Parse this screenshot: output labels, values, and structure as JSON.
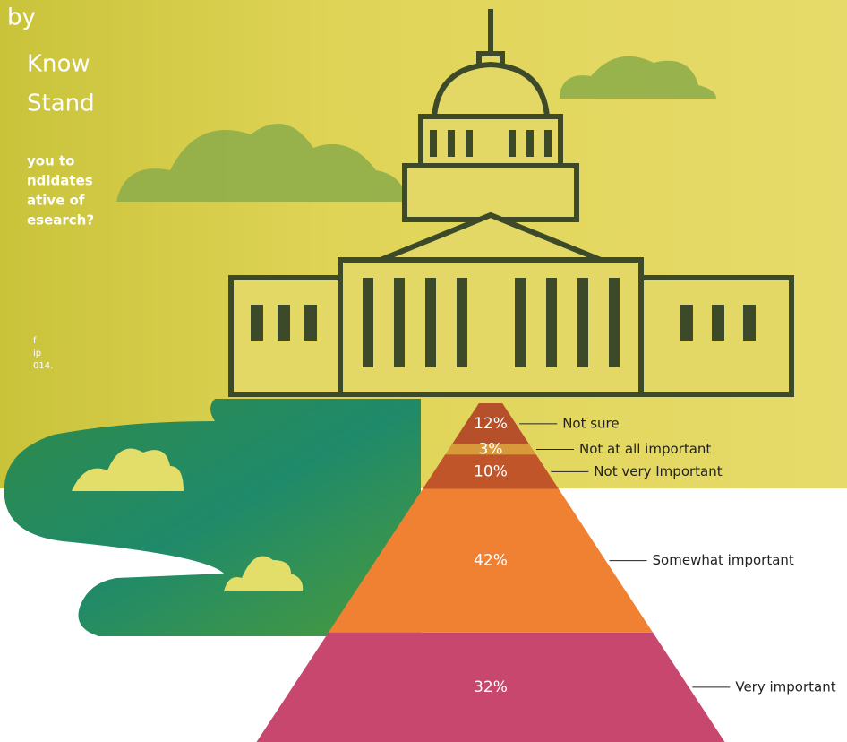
{
  "header": {
    "title_lines": [
      "by",
      "Know",
      "Stand"
    ],
    "question_lines": [
      "you to",
      "ndidates",
      "ative of",
      "esearch?"
    ],
    "note_lines": [
      "f",
      "ip",
      "014."
    ]
  },
  "chart_data": {
    "type": "pyramid",
    "categories": [
      "Not sure",
      "Not at all important",
      "Not very Important",
      "Somewhat important",
      "Very important"
    ],
    "values": [
      12,
      3,
      10,
      42,
      32
    ],
    "value_labels": [
      "12%",
      "3%",
      "10%",
      "42%",
      "32%"
    ],
    "colors": [
      "#b5502b",
      "#d8993a",
      "#bf5529",
      "#f08133",
      "#c8476f"
    ]
  }
}
